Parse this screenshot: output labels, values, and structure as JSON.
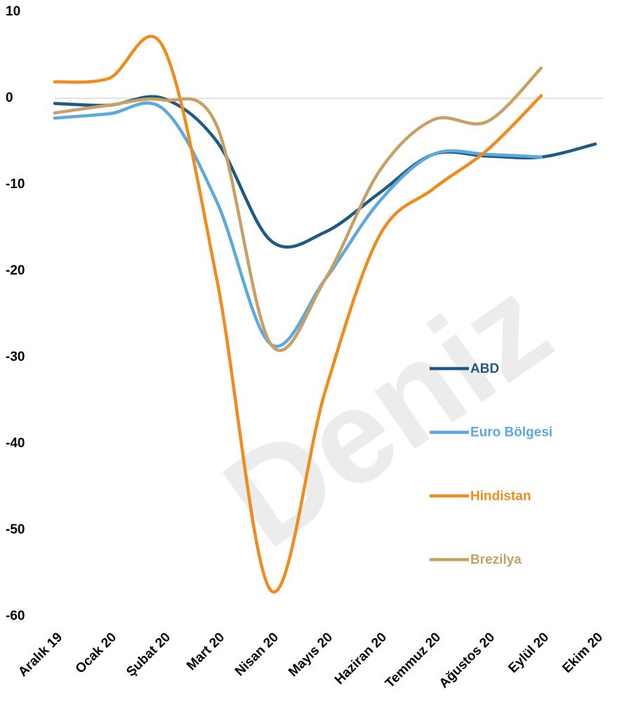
{
  "chart_data": {
    "type": "line",
    "categories": [
      "Aralık 19",
      "Ocak 20",
      "Şubat 20",
      "Mart 20",
      "Nisan 20",
      "Mayıs 20",
      "Haziran 20",
      "Temmuz 20",
      "Ağustos 20",
      "Eylül 20",
      "Ekim 20"
    ],
    "series": [
      {
        "name": "ABD",
        "color": "#1f5a82",
        "values": [
          -0.6,
          -0.8,
          0,
          -5,
          -16.5,
          -15.5,
          -11,
          -6.5,
          -6.7,
          -6.8,
          -5.3
        ]
      },
      {
        "name": "Euro Bölgesi",
        "color": "#5aaae0",
        "values": [
          -2.3,
          -1.8,
          -1.2,
          -12,
          -28.5,
          -21,
          -12,
          -6.5,
          -6.5,
          -6.8,
          null
        ]
      },
      {
        "name": "Hindistan",
        "color": "#f08c1e",
        "values": [
          1.9,
          2.3,
          6,
          -21,
          -57,
          -34,
          -16,
          -10.5,
          -6,
          0.3,
          null
        ]
      },
      {
        "name": "Brezilya",
        "color": "#c8a064",
        "values": [
          -1.7,
          -0.8,
          -0.2,
          -3.2,
          -28.5,
          -21,
          -8.5,
          -2.5,
          -2.7,
          3.5,
          null
        ]
      }
    ],
    "ylim": [
      -60,
      10
    ],
    "yticks": [
      -60,
      -50,
      -40,
      -30,
      -20,
      -10,
      0,
      10
    ],
    "grid": false,
    "legend": "right",
    "watermark": "Deniz"
  }
}
